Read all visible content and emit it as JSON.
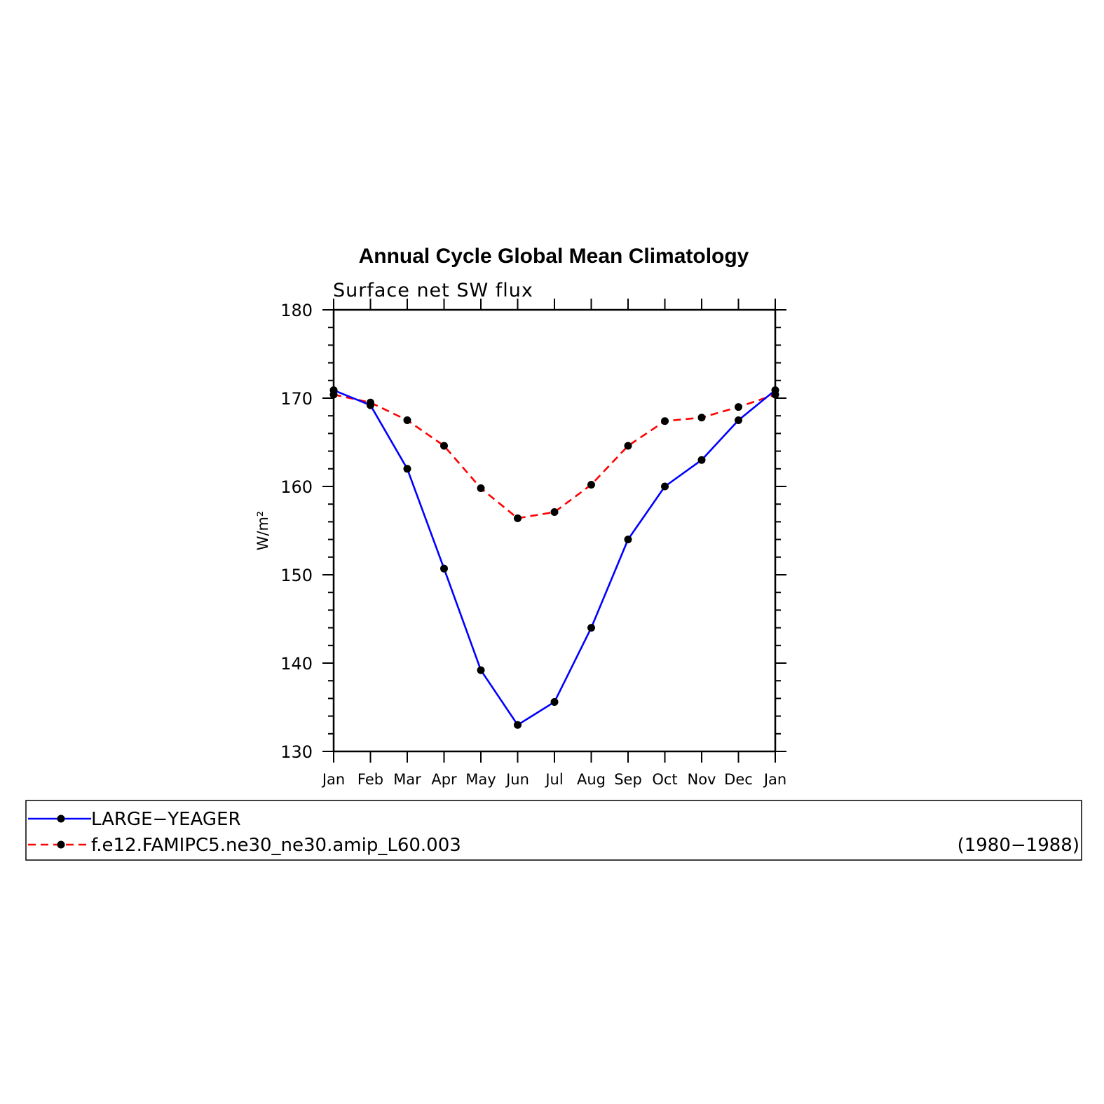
{
  "chart_data": {
    "type": "line",
    "title": "Annual Cycle Global Mean Climatology",
    "subtitle": "Surface net SW flux",
    "ylabel": "W/m²",
    "ylim": [
      130,
      180
    ],
    "yticks": [
      "130",
      "140",
      "150",
      "160",
      "170",
      "180"
    ],
    "categories": [
      "Jan",
      "Feb",
      "Mar",
      "Apr",
      "May",
      "Jun",
      "Jul",
      "Aug",
      "Sep",
      "Oct",
      "Nov",
      "Dec",
      "Jan"
    ],
    "series": [
      {
        "name": "LARGE−YEAGER",
        "color": "#0000ff",
        "dash": "solid",
        "values": [
          170.9,
          169.2,
          162.0,
          150.7,
          139.2,
          133.0,
          135.6,
          144.0,
          154.0,
          160.0,
          163.0,
          167.5,
          170.9
        ]
      },
      {
        "name": "f.e12.FAMIPC5.ne30_ne30.amip_L60.003",
        "color": "#ff0000",
        "dash": "dashed",
        "values": [
          170.4,
          169.5,
          167.5,
          164.6,
          159.8,
          156.4,
          157.1,
          160.2,
          164.6,
          167.4,
          167.8,
          169.0,
          170.4
        ]
      }
    ],
    "legend": {
      "period": "(1980−1988)"
    }
  }
}
